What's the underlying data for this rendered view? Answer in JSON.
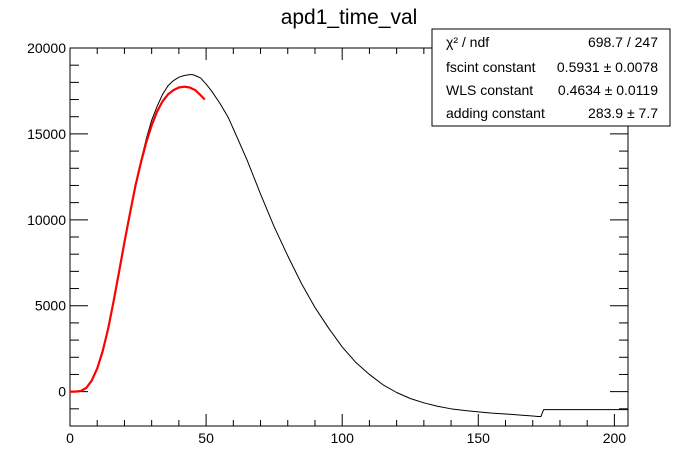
{
  "chart_data": {
    "type": "line",
    "title": "apd1_time_val",
    "xlabel": "",
    "ylabel": "",
    "xlim": [
      0,
      205
    ],
    "ylim": [
      -2000,
      20000
    ],
    "x_ticks": [
      0,
      50,
      100,
      150,
      200
    ],
    "x_tick_labels": [
      "0",
      "50",
      "100",
      "150",
      "200"
    ],
    "y_ticks": [
      0,
      5000,
      10000,
      15000,
      20000
    ],
    "y_tick_labels": [
      "0",
      "5000",
      "10000",
      "15000",
      "20000"
    ],
    "grid": false,
    "series": [
      {
        "color": "#000000",
        "x": [
          0,
          2,
          4,
          6,
          8,
          10,
          12,
          14,
          16,
          18,
          20,
          22,
          24,
          26,
          28,
          30,
          32,
          34,
          36,
          38,
          40,
          42,
          44,
          45,
          46,
          48,
          50,
          52,
          55,
          58,
          60,
          65,
          70,
          75,
          80,
          85,
          90,
          95,
          100,
          105,
          110,
          115,
          120,
          125,
          130,
          135,
          140,
          145,
          150,
          155,
          160,
          165,
          170,
          172,
          173,
          174,
          180,
          190,
          200,
          205
        ],
        "y": [
          0,
          0,
          30,
          200,
          600,
          1300,
          2300,
          3600,
          5200,
          6900,
          8700,
          10400,
          12000,
          13400,
          14700,
          15800,
          16600,
          17300,
          17800,
          18100,
          18300,
          18400,
          18450,
          18450,
          18400,
          18250,
          17900,
          17500,
          16800,
          16000,
          15300,
          13500,
          11500,
          9600,
          7900,
          6300,
          4900,
          3700,
          2600,
          1700,
          1000,
          400,
          -50,
          -400,
          -650,
          -850,
          -1000,
          -1100,
          -1180,
          -1250,
          -1300,
          -1360,
          -1420,
          -1450,
          -1450,
          -1050,
          -1050,
          -1050,
          -1050,
          -1050
        ]
      },
      {
        "color": "#ff0000",
        "x": [
          0,
          2,
          4,
          6,
          8,
          10,
          12,
          14,
          16,
          18,
          20,
          22,
          24,
          26,
          28,
          30,
          32,
          34,
          36,
          38,
          40,
          42,
          44,
          46,
          48,
          49.5
        ],
        "y": [
          0,
          0,
          40,
          220,
          650,
          1350,
          2350,
          3650,
          5250,
          6950,
          8700,
          10350,
          11950,
          13300,
          14500,
          15500,
          16300,
          16900,
          17300,
          17550,
          17700,
          17750,
          17700,
          17550,
          17250,
          17000
        ]
      }
    ],
    "stats_box": {
      "rows": [
        {
          "label": "χ² / ndf",
          "value": "698.7 / 247"
        },
        {
          "label": "fscint constant",
          "value": "0.5931 ± 0.0078"
        },
        {
          "label": "WLS constant",
          "value": "0.4634 ± 0.0119"
        },
        {
          "label": "adding constant",
          "value": "283.9 ± 7.7"
        }
      ]
    }
  }
}
